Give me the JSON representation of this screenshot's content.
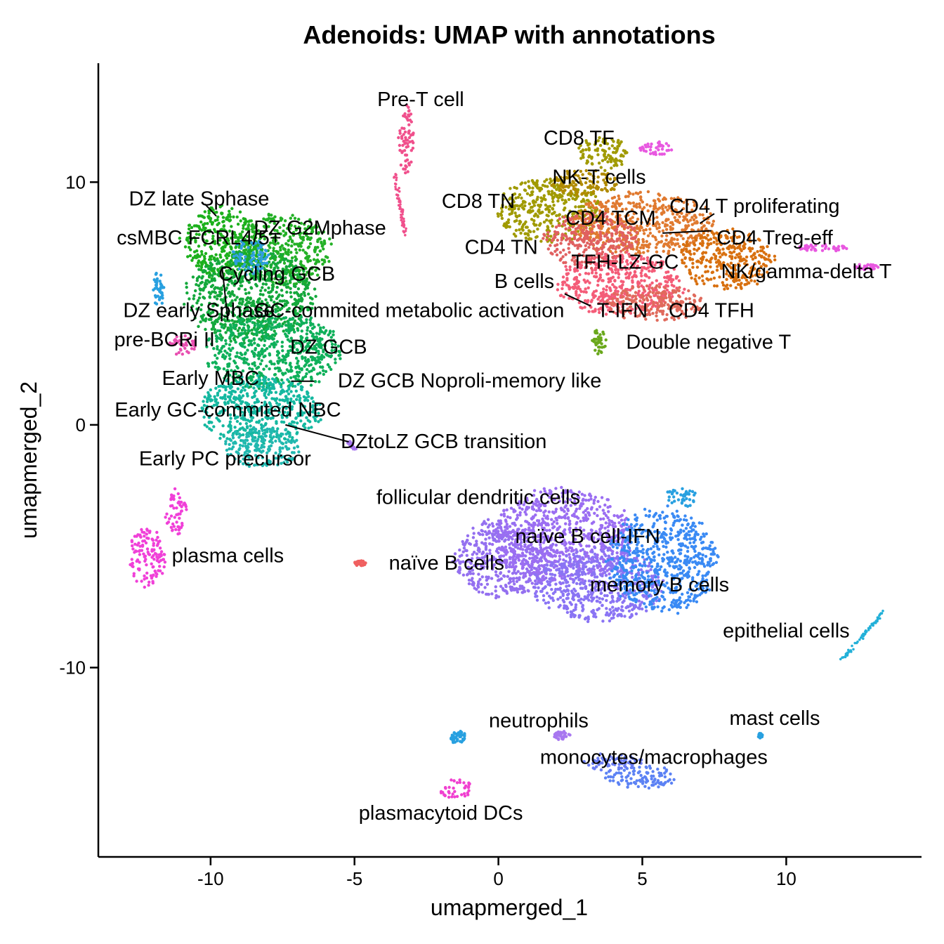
{
  "chart_data": {
    "type": "scatter",
    "title": "Adenoids: UMAP with annotations",
    "xlabel": "umapmerged_1",
    "ylabel": "umapmerged_2",
    "xlim": [
      -13.9,
      14.7
    ],
    "ylim": [
      -17.8,
      14.9
    ],
    "x_ticks": [
      -10,
      -5,
      0,
      5,
      10
    ],
    "y_ticks": [
      -10,
      0,
      10
    ],
    "grid": false,
    "legend": "none",
    "clusters": [
      {
        "x": -9.6,
        "y": 7.5,
        "rx": 1.5,
        "ry": 1.6,
        "color": "#1cb01c"
      },
      {
        "x": -7.5,
        "y": 7.2,
        "rx": 1.8,
        "ry": 1.6,
        "color": "#23b026"
      },
      {
        "x": -8.6,
        "y": 5.3,
        "rx": 2.4,
        "ry": 2.0,
        "color": "#14a83c"
      },
      {
        "x": -7.8,
        "y": 3.0,
        "rx": 2.5,
        "ry": 1.7,
        "color": "#0fb05a"
      },
      {
        "x": -8.3,
        "y": 0.6,
        "rx": 2.3,
        "ry": 1.5,
        "color": "#14b8a0"
      },
      {
        "x": -8.2,
        "y": -0.9,
        "rx": 1.4,
        "ry": 0.9,
        "color": "#22b8b0"
      },
      {
        "x": -8.6,
        "y": 6.9,
        "rx": 0.7,
        "ry": 0.8,
        "color": "#2f9fe0"
      },
      {
        "x": -11.0,
        "y": 3.3,
        "rx": 0.5,
        "ry": 0.45,
        "color": "#e84fb0"
      },
      {
        "x": -11.8,
        "y": 5.6,
        "rx": 0.2,
        "ry": 0.8,
        "color": "#28a0e0"
      },
      {
        "x": -12.2,
        "y": -5.5,
        "rx": 0.7,
        "ry": 1.3,
        "color": "#f040d8"
      },
      {
        "x": -11.2,
        "y": -3.6,
        "rx": 0.4,
        "ry": 1.0,
        "color": "#f040d8"
      },
      {
        "x": -3.2,
        "y": 11.8,
        "rx": 0.3,
        "ry": 1.6,
        "color": "#f0508c"
      },
      {
        "x": -4.8,
        "y": -5.7,
        "rx": 0.2,
        "ry": 0.12,
        "color": "#f06060"
      },
      {
        "x": 3.6,
        "y": 11.2,
        "rx": 0.9,
        "ry": 0.8,
        "color": "#a09a00"
      },
      {
        "x": 5.5,
        "y": 11.4,
        "rx": 0.7,
        "ry": 0.3,
        "color": "#e858e0"
      },
      {
        "x": 1.8,
        "y": 8.8,
        "rx": 2.0,
        "ry": 1.4,
        "color": "#a09a00"
      },
      {
        "x": 3.0,
        "y": 10.0,
        "rx": 1.3,
        "ry": 0.6,
        "color": "#b08a00"
      },
      {
        "x": 5.0,
        "y": 8.3,
        "rx": 2.6,
        "ry": 1.4,
        "color": "#e07a30"
      },
      {
        "x": 3.2,
        "y": 7.6,
        "rx": 1.8,
        "ry": 1.2,
        "color": "#e06060"
      },
      {
        "x": 7.9,
        "y": 6.8,
        "rx": 1.8,
        "ry": 1.3,
        "color": "#d87010"
      },
      {
        "x": 4.2,
        "y": 5.8,
        "rx": 2.3,
        "ry": 1.4,
        "color": "#f45c78"
      },
      {
        "x": 5.5,
        "y": 5.0,
        "rx": 1.8,
        "ry": 0.8,
        "color": "#e06a5c"
      },
      {
        "x": 3.5,
        "y": 3.4,
        "rx": 0.25,
        "ry": 0.6,
        "color": "#6aa81c"
      },
      {
        "x": 11.3,
        "y": 7.3,
        "rx": 1.0,
        "ry": 0.15,
        "color": "#e858e0"
      },
      {
        "x": 12.8,
        "y": 6.5,
        "rx": 0.5,
        "ry": 0.12,
        "color": "#e858e0"
      },
      {
        "x": 0.2,
        "y": -5.5,
        "rx": 1.9,
        "ry": 1.7,
        "color": "#9470f0"
      },
      {
        "x": 2.2,
        "y": -4.6,
        "rx": 2.6,
        "ry": 2.1,
        "color": "#9b6ef2"
      },
      {
        "x": 3.5,
        "y": -6.6,
        "rx": 2.4,
        "ry": 1.6,
        "color": "#8a74f4"
      },
      {
        "x": 5.7,
        "y": -5.6,
        "rx": 2.0,
        "ry": 2.3,
        "color": "#3a8af4"
      },
      {
        "x": 6.3,
        "y": -3.0,
        "rx": 0.6,
        "ry": 0.5,
        "color": "#28a0e0"
      },
      {
        "x": 4.9,
        "y": -14.5,
        "rx": 1.4,
        "ry": 0.5,
        "color": "#5c82f4"
      },
      {
        "x": 4.0,
        "y": -13.9,
        "rx": 1.1,
        "ry": 0.4,
        "color": "#6a7cf2"
      },
      {
        "x": -1.5,
        "y": -15.0,
        "rx": 0.6,
        "ry": 0.45,
        "color": "#f040d0"
      },
      {
        "x": -1.4,
        "y": -12.9,
        "rx": 0.3,
        "ry": 0.3,
        "color": "#28a0e0"
      },
      {
        "x": 2.2,
        "y": -12.8,
        "rx": 0.3,
        "ry": 0.2,
        "color": "#a878f0"
      },
      {
        "x": 9.1,
        "y": -12.8,
        "rx": 0.08,
        "ry": 0.1,
        "color": "#28a0e0"
      }
    ],
    "streaks": [
      {
        "x1": 11.9,
        "y1": -9.7,
        "x2": 13.4,
        "y2": -7.7,
        "color": "#22b0d8"
      },
      {
        "x1": -3.6,
        "y1": 10.3,
        "x2": -3.2,
        "y2": 7.7,
        "color": "#f0508c"
      },
      {
        "x1": -5.2,
        "y1": -0.7,
        "x2": -5.0,
        "y2": -1.0,
        "color": "#a878f0"
      }
    ],
    "annotations": [
      {
        "label": "Pre-T cell",
        "x": -2.7,
        "y": 13.4
      },
      {
        "label": "CD8 TF",
        "x": 2.8,
        "y": 11.8
      },
      {
        "label": "NK-T cells",
        "x": 3.5,
        "y": 10.2
      },
      {
        "label": "CD8 TN",
        "x": -0.7,
        "y": 9.2
      },
      {
        "label": "CD4 T proliferating",
        "x": 8.9,
        "y": 9.0
      },
      {
        "label": "CD4 TCM",
        "x": 3.9,
        "y": 8.5
      },
      {
        "label": "CD4 Treg-eff",
        "x": 9.6,
        "y": 7.7
      },
      {
        "label": "CD4 TN",
        "x": 0.1,
        "y": 7.3
      },
      {
        "label": "TFH-LZ-GC",
        "x": 4.4,
        "y": 6.7
      },
      {
        "label": "NK/gamma-delta T",
        "x": 10.7,
        "y": 6.3
      },
      {
        "label": "B cells",
        "x": 0.9,
        "y": 5.9
      },
      {
        "label": "T-IFN",
        "x": 4.3,
        "y": 4.7
      },
      {
        "label": "CD4 TFH",
        "x": 7.4,
        "y": 4.7
      },
      {
        "label": "Double negative T",
        "x": 7.3,
        "y": 3.4
      },
      {
        "label": "DZ late Sphase",
        "x": -10.4,
        "y": 9.3
      },
      {
        "label": "DZ G2Mphase",
        "x": -6.2,
        "y": 8.1
      },
      {
        "label": "csMBC FCRL4/5+",
        "x": -10.4,
        "y": 7.7
      },
      {
        "label": "Cycling GCB",
        "x": -7.7,
        "y": 6.2
      },
      {
        "label": "DZ early  Sphase",
        "x": -10.4,
        "y": 4.7
      },
      {
        "label": "GC-commited metabolic activation",
        "x": -3.1,
        "y": 4.7
      },
      {
        "label": "pre-BCRi II",
        "x": -11.6,
        "y": 3.5
      },
      {
        "label": "DZ GCB",
        "x": -5.9,
        "y": 3.2
      },
      {
        "label": "Early MBC",
        "x": -10.0,
        "y": 1.9
      },
      {
        "label": "DZ GCB Noproli-memory like",
        "x": -1.0,
        "y": 1.8
      },
      {
        "label": "Early GC-commited NBC",
        "x": -9.4,
        "y": 0.6
      },
      {
        "label": "DZtoLZ GCB transition",
        "x": -1.9,
        "y": -0.7
      },
      {
        "label": "Early PC precursor",
        "x": -9.5,
        "y": -1.4
      },
      {
        "label": "follicular dendritic cells",
        "x": -0.7,
        "y": -3.0
      },
      {
        "label": "naïve B cell-IFN",
        "x": 3.1,
        "y": -4.6
      },
      {
        "label": "plasma cells",
        "x": -9.4,
        "y": -5.4
      },
      {
        "label": "naïve B cells",
        "x": -1.8,
        "y": -5.7
      },
      {
        "label": "memory B cells",
        "x": 5.6,
        "y": -6.6
      },
      {
        "label": "epithelial cells",
        "x": 10.0,
        "y": -8.5
      },
      {
        "label": "mast cells",
        "x": 9.6,
        "y": -12.1
      },
      {
        "label": "neutrophils",
        "x": 1.4,
        "y": -12.2
      },
      {
        "label": "monocytes/macrophages",
        "x": 5.4,
        "y": -13.7
      },
      {
        "label": "plasmacytoid DCs",
        "x": -2.0,
        "y": -16.0
      }
    ],
    "leader_lines": [
      {
        "x1": -10.2,
        "y1": 9.1,
        "x2": -9.8,
        "y2": 8.6
      },
      {
        "x1": -9.6,
        "y1": 6.5,
        "x2": -9.4,
        "y2": 4.3
      },
      {
        "x1": -7.2,
        "y1": 1.8,
        "x2": -6.4,
        "y2": 1.8
      },
      {
        "x1": -7.4,
        "y1": 0.0,
        "x2": -5.2,
        "y2": -0.7
      },
      {
        "x1": 7.0,
        "y1": 8.3,
        "x2": 7.5,
        "y2": 8.7
      },
      {
        "x1": 5.7,
        "y1": 7.9,
        "x2": 7.4,
        "y2": 8.0
      },
      {
        "x1": 2.3,
        "y1": 5.4,
        "x2": 3.2,
        "y2": 4.9
      }
    ]
  }
}
